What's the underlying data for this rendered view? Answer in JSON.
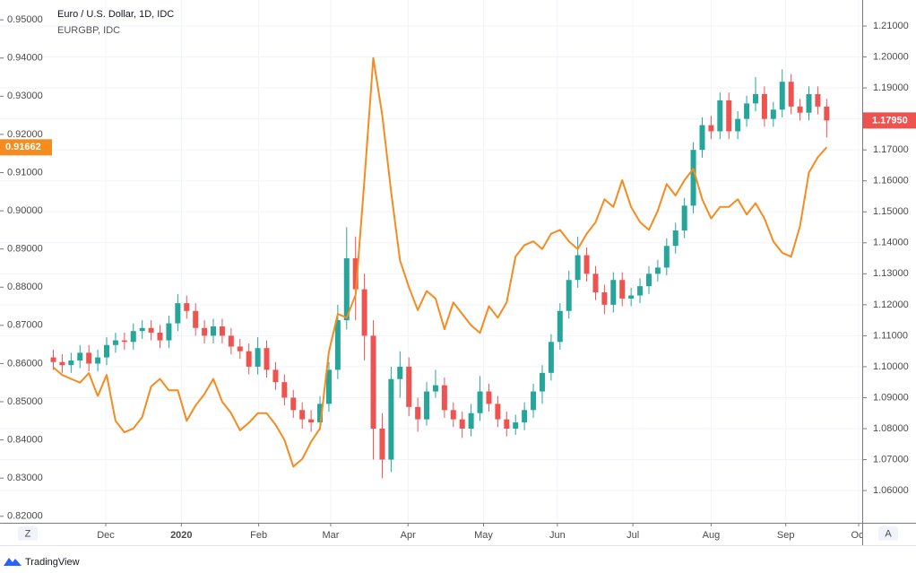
{
  "chart_data": {
    "type": "candlestick",
    "x": [
      0,
      1,
      2,
      3,
      4,
      5,
      6,
      7,
      8,
      9,
      10,
      11,
      12,
      13,
      14,
      15,
      16,
      17,
      18,
      19,
      20,
      21,
      22,
      23,
      24,
      25,
      26,
      27,
      28,
      29,
      30,
      31,
      32,
      33,
      34,
      35,
      36,
      37,
      38,
      39,
      40,
      41,
      42,
      43,
      44,
      45,
      46,
      47,
      48,
      49,
      50,
      51,
      52,
      53,
      54,
      55,
      56,
      57,
      58,
      59,
      60,
      61,
      62,
      63,
      64,
      65,
      66,
      67,
      68,
      69,
      70,
      71,
      72,
      73,
      74,
      75,
      76,
      77,
      78,
      79,
      80,
      81,
      82,
      83,
      84,
      85,
      86,
      87
    ],
    "xlim": [
      -6,
      91
    ],
    "xticks": [
      {
        "value": 5.9,
        "label": "Dec"
      },
      {
        "value": 14.4,
        "label": "2020"
      },
      {
        "value": 23.1,
        "label": "Feb"
      },
      {
        "value": 31.2,
        "label": "Mar"
      },
      {
        "value": 39.9,
        "label": "Apr"
      },
      {
        "value": 48.4,
        "label": "May"
      },
      {
        "value": 56.7,
        "label": "Jun"
      },
      {
        "value": 65.2,
        "label": "Jul"
      },
      {
        "value": 74.0,
        "label": "Aug"
      },
      {
        "value": 82.4,
        "label": "Sep"
      },
      {
        "value": 90.6,
        "label": "Oct"
      }
    ],
    "ylim": [
      0.8183,
      0.9552
    ],
    "yticks": [
      {
        "value": 0.82,
        "label": "0.82000"
      },
      {
        "value": 0.83,
        "label": "0.83000"
      },
      {
        "value": 0.84,
        "label": "0.84000"
      },
      {
        "value": 0.85,
        "label": "0.85000"
      },
      {
        "value": 0.86,
        "label": "0.86000"
      },
      {
        "value": 0.87,
        "label": "0.87000"
      },
      {
        "value": 0.88,
        "label": "0.88000"
      },
      {
        "value": 0.89,
        "label": "0.89000"
      },
      {
        "value": 0.9,
        "label": "0.90000"
      },
      {
        "value": 0.91,
        "label": "0.91000"
      },
      {
        "value": 0.92,
        "label": "0.92000"
      },
      {
        "value": 0.93,
        "label": "0.93000"
      },
      {
        "value": 0.94,
        "label": "0.94000"
      },
      {
        "value": 0.95,
        "label": "0.95000"
      }
    ],
    "y2lim": [
      1.0496,
      1.2184
    ],
    "y2ticks": [
      {
        "value": 1.06,
        "label": "1.06000"
      },
      {
        "value": 1.07,
        "label": "1.07000"
      },
      {
        "value": 1.08,
        "label": "1.08000"
      },
      {
        "value": 1.09,
        "label": "1.09000"
      },
      {
        "value": 1.1,
        "label": "1.10000"
      },
      {
        "value": 1.11,
        "label": "1.11000"
      },
      {
        "value": 1.12,
        "label": "1.12000"
      },
      {
        "value": 1.13,
        "label": "1.13000"
      },
      {
        "value": 1.14,
        "label": "1.14000"
      },
      {
        "value": 1.15,
        "label": "1.15000"
      },
      {
        "value": 1.16,
        "label": "1.16000"
      },
      {
        "value": 1.17,
        "label": "1.17000"
      },
      {
        "value": 1.18,
        "label": "1.18000"
      },
      {
        "value": 1.19,
        "label": "1.19000"
      },
      {
        "value": 1.2,
        "label": "1.20000"
      },
      {
        "value": 1.21,
        "label": "1.21000"
      }
    ],
    "grid": true,
    "series": [
      {
        "name": "Euro / U.S. Dollar, 1D, IDC",
        "type": "candlestick",
        "axis": "y2",
        "up_color": "#26a69a",
        "down_color": "#ef5350",
        "open": [
          1.103,
          1.1015,
          1.1005,
          1.102,
          1.1045,
          1.101,
          1.103,
          1.107,
          1.1085,
          1.108,
          1.1115,
          1.1125,
          1.111,
          1.1085,
          1.114,
          1.1205,
          1.118,
          1.1125,
          1.11,
          1.113,
          1.11,
          1.1065,
          1.105,
          1.1,
          1.106,
          1.099,
          1.095,
          1.09,
          1.086,
          1.083,
          1.082,
          1.088,
          1.099,
          1.115,
          1.135,
          1.125,
          1.11,
          1.08,
          1.07,
          1.096,
          1.1,
          1.087,
          1.083,
          1.092,
          1.094,
          1.086,
          1.083,
          1.08,
          1.085,
          1.092,
          1.088,
          1.083,
          1.08,
          1.082,
          1.086,
          1.092,
          1.098,
          1.108,
          1.118,
          1.128,
          1.136,
          1.13,
          1.124,
          1.12,
          1.128,
          1.122,
          1.123,
          1.126,
          1.13,
          1.132,
          1.139,
          1.144,
          1.152,
          1.17,
          1.178,
          1.176,
          1.186,
          1.176,
          1.18,
          1.185,
          1.188,
          1.18,
          1.183,
          1.192,
          1.184,
          1.182,
          1.188,
          1.184
        ],
        "high": [
          1.1055,
          1.104,
          1.1045,
          1.107,
          1.107,
          1.1055,
          1.1095,
          1.111,
          1.111,
          1.114,
          1.115,
          1.115,
          1.1135,
          1.1165,
          1.1235,
          1.123,
          1.1205,
          1.115,
          1.1155,
          1.1155,
          1.1125,
          1.109,
          1.1075,
          1.1095,
          1.1085,
          1.1015,
          1.0975,
          1.0925,
          1.0885,
          1.086,
          1.0905,
          1.1015,
          1.12,
          1.145,
          1.142,
          1.13,
          1.115,
          1.085,
          1.1,
          1.105,
          1.103,
          1.09,
          1.095,
          1.099,
          1.0965,
          1.0885,
          1.0855,
          1.088,
          1.097,
          1.0945,
          1.0905,
          1.0855,
          1.0845,
          1.0885,
          1.0945,
          1.1005,
          1.1105,
          1.1205,
          1.131,
          1.142,
          1.1385,
          1.1325,
          1.1265,
          1.1305,
          1.1305,
          1.1255,
          1.1285,
          1.1325,
          1.1345,
          1.1415,
          1.1465,
          1.1545,
          1.1725,
          1.1805,
          1.181,
          1.1885,
          1.1885,
          1.1825,
          1.1875,
          1.1935,
          1.1905,
          1.1855,
          1.196,
          1.1945,
          1.1865,
          1.1905,
          1.1905,
          1.1865
        ],
        "low": [
          1.099,
          1.098,
          1.098,
          1.0995,
          1.0985,
          1.0985,
          1.1005,
          1.1045,
          1.1055,
          1.1055,
          1.109,
          1.1085,
          1.106,
          1.106,
          1.1115,
          1.1155,
          1.11,
          1.1075,
          1.1075,
          1.1075,
          1.104,
          1.1025,
          1.0975,
          1.0975,
          1.0965,
          1.0925,
          1.0875,
          1.0835,
          1.08,
          1.079,
          1.0795,
          1.0855,
          1.096,
          1.112,
          1.115,
          1.102,
          1.07,
          1.064,
          1.066,
          1.09,
          1.084,
          1.079,
          1.081,
          1.09,
          1.0835,
          1.0805,
          1.077,
          1.0775,
          1.0825,
          1.0855,
          1.0805,
          1.0775,
          1.078,
          1.0795,
          1.0835,
          1.088,
          1.0955,
          1.1055,
          1.1155,
          1.1255,
          1.1275,
          1.1215,
          1.117,
          1.1175,
          1.1195,
          1.1195,
          1.1205,
          1.1235,
          1.1275,
          1.1295,
          1.1365,
          1.1415,
          1.1495,
          1.1675,
          1.1735,
          1.1735,
          1.1735,
          1.1735,
          1.1775,
          1.1825,
          1.1775,
          1.1775,
          1.1805,
          1.1815,
          1.1795,
          1.1795,
          1.1815,
          1.174
        ],
        "close": [
          1.1015,
          1.1005,
          1.102,
          1.1045,
          1.101,
          1.103,
          1.107,
          1.1085,
          1.108,
          1.1115,
          1.1125,
          1.111,
          1.1085,
          1.114,
          1.1205,
          1.118,
          1.1125,
          1.11,
          1.113,
          1.11,
          1.1065,
          1.105,
          1.1,
          1.106,
          1.099,
          1.095,
          1.09,
          1.086,
          1.083,
          1.082,
          1.088,
          1.099,
          1.115,
          1.135,
          1.125,
          1.11,
          1.08,
          1.07,
          1.096,
          1.1,
          1.087,
          1.083,
          1.092,
          1.094,
          1.086,
          1.083,
          1.08,
          1.085,
          1.092,
          1.088,
          1.083,
          1.08,
          1.082,
          1.086,
          1.092,
          1.098,
          1.108,
          1.118,
          1.128,
          1.136,
          1.13,
          1.124,
          1.12,
          1.128,
          1.122,
          1.123,
          1.126,
          1.13,
          1.132,
          1.139,
          1.144,
          1.152,
          1.17,
          1.178,
          1.176,
          1.186,
          1.176,
          1.18,
          1.185,
          1.188,
          1.18,
          1.183,
          1.192,
          1.184,
          1.182,
          1.188,
          1.184,
          1.1795
        ],
        "last_label": "1.17950"
      },
      {
        "name": "EURGBP, IDC",
        "type": "line",
        "axis": "y",
        "color": "#f68b1f",
        "values": [
          0.859,
          0.857,
          0.856,
          0.855,
          0.8575,
          0.8515,
          0.857,
          0.845,
          0.842,
          0.843,
          0.846,
          0.854,
          0.856,
          0.853,
          0.853,
          0.845,
          0.849,
          0.852,
          0.856,
          0.85,
          0.847,
          0.8425,
          0.8445,
          0.847,
          0.847,
          0.844,
          0.84,
          0.833,
          0.835,
          0.8395,
          0.843,
          0.863,
          0.873,
          0.872,
          0.878,
          0.908,
          0.94,
          0.925,
          0.905,
          0.887,
          0.88,
          0.874,
          0.879,
          0.877,
          0.869,
          0.876,
          0.873,
          0.87,
          0.868,
          0.875,
          0.872,
          0.876,
          0.888,
          0.891,
          0.892,
          0.89,
          0.894,
          0.895,
          0.892,
          0.89,
          0.894,
          0.897,
          0.903,
          0.901,
          0.908,
          0.901,
          0.897,
          0.895,
          0.9,
          0.907,
          0.904,
          0.908,
          0.911,
          0.903,
          0.898,
          0.901,
          0.901,
          0.903,
          0.899,
          0.902,
          0.898,
          0.892,
          0.889,
          0.888,
          0.896,
          0.91,
          0.914,
          0.91662
        ],
        "last_label": "0.91662"
      }
    ]
  },
  "controls": {
    "left_button": "Z",
    "right_button": "A"
  },
  "branding": "TradingView"
}
